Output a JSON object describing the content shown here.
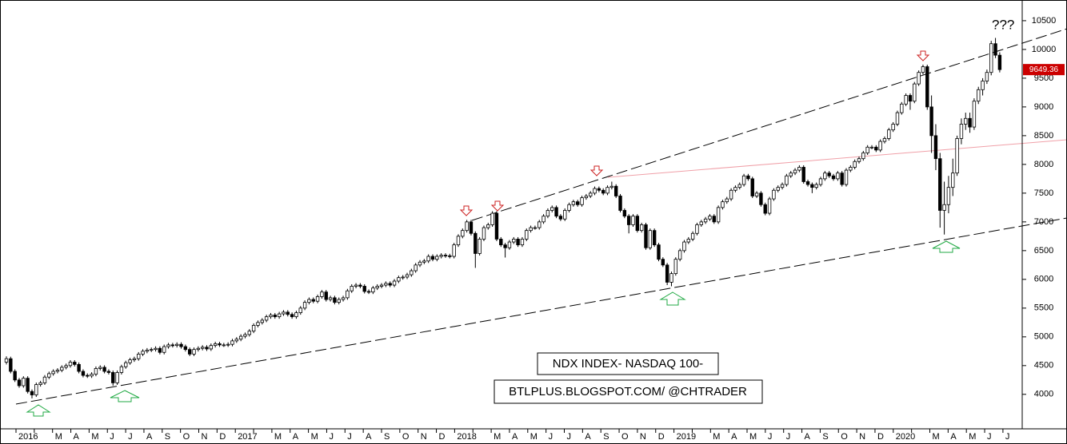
{
  "chart_data": {
    "type": "candlestick",
    "annotations": [
      "???",
      "NDX INDEX- NASDAQ 100-",
      "BTLPLUS.BLOGSPOT.COM/ @CHTRADER"
    ],
    "ylim": [
      3400,
      10860
    ],
    "yticks": [
      4000,
      4500,
      5000,
      5500,
      6000,
      6500,
      7000,
      7500,
      8000,
      8500,
      9000,
      9500,
      10000,
      10500
    ],
    "up_color": "#ffffff",
    "down_color": "#000000",
    "last_price_color": "#cc0000",
    "month_labels": [
      "2016",
      null,
      "M",
      "A",
      "M",
      "J",
      "J",
      "A",
      "S",
      "O",
      "N",
      "D",
      "2017",
      null,
      "M",
      "A",
      "M",
      "J",
      "J",
      "A",
      "S",
      "O",
      "N",
      "D",
      "2018",
      null,
      "M",
      "A",
      "M",
      "J",
      "J",
      "A",
      "S",
      "O",
      "N",
      "D",
      "2019",
      null,
      "M",
      "A",
      "M",
      "J",
      "J",
      "A",
      "S",
      "O",
      "N",
      "D",
      "2020",
      null,
      "M",
      "A",
      "M",
      "J",
      "J"
    ],
    "candles": [
      [
        4560,
        4660,
        4520,
        4620
      ],
      [
        4620,
        4655,
        4365,
        4400
      ],
      [
        4400,
        4435,
        4215,
        4250
      ],
      [
        4250,
        4285,
        4115,
        4150
      ],
      [
        4150,
        4315,
        4115,
        4280
      ],
      [
        4280,
        4315,
        4015,
        4050
      ],
      [
        4050,
        4085,
        3930,
        3990
      ],
      [
        3990,
        4205,
        3955,
        4170
      ],
      [
        4170,
        4235,
        4135,
        4200
      ],
      [
        4200,
        4335,
        4165,
        4300
      ],
      [
        4300,
        4395,
        4265,
        4360
      ],
      [
        4360,
        4435,
        4325,
        4400
      ],
      [
        4400,
        4455,
        4365,
        4420
      ],
      [
        4420,
        4505,
        4385,
        4470
      ],
      [
        4470,
        4535,
        4435,
        4500
      ],
      [
        4500,
        4595,
        4465,
        4560
      ],
      [
        4560,
        4595,
        4485,
        4520
      ],
      [
        4520,
        4555,
        4365,
        4400
      ],
      [
        4400,
        4435,
        4295,
        4330
      ],
      [
        4330,
        4365,
        4285,
        4320
      ],
      [
        4320,
        4385,
        4285,
        4350
      ],
      [
        4350,
        4485,
        4315,
        4450
      ],
      [
        4450,
        4505,
        4415,
        4470
      ],
      [
        4470,
        4505,
        4365,
        4400
      ],
      [
        4400,
        4435,
        4345,
        4380
      ],
      [
        4380,
        4415,
        4150,
        4200
      ],
      [
        4200,
        4415,
        4165,
        4380
      ],
      [
        4380,
        4515,
        4345,
        4480
      ],
      [
        4480,
        4585,
        4445,
        4550
      ],
      [
        4550,
        4635,
        4515,
        4600
      ],
      [
        4600,
        4655,
        4565,
        4620
      ],
      [
        4620,
        4735,
        4585,
        4700
      ],
      [
        4700,
        4785,
        4665,
        4750
      ],
      [
        4750,
        4805,
        4715,
        4770
      ],
      [
        4770,
        4815,
        4735,
        4780
      ],
      [
        4780,
        4835,
        4745,
        4800
      ],
      [
        4800,
        4835,
        4695,
        4730
      ],
      [
        4730,
        4865,
        4695,
        4830
      ],
      [
        4830,
        4895,
        4795,
        4860
      ],
      [
        4860,
        4895,
        4815,
        4850
      ],
      [
        4850,
        4905,
        4815,
        4870
      ],
      [
        4870,
        4905,
        4795,
        4830
      ],
      [
        4830,
        4865,
        4745,
        4780
      ],
      [
        4780,
        4815,
        4665,
        4700
      ],
      [
        4700,
        4815,
        4665,
        4780
      ],
      [
        4780,
        4835,
        4745,
        4800
      ],
      [
        4800,
        4855,
        4765,
        4820
      ],
      [
        4820,
        4855,
        4755,
        4790
      ],
      [
        4790,
        4885,
        4755,
        4850
      ],
      [
        4850,
        4915,
        4815,
        4880
      ],
      [
        4880,
        4915,
        4825,
        4860
      ],
      [
        4860,
        4895,
        4825,
        4860
      ],
      [
        4860,
        4905,
        4825,
        4870
      ],
      [
        4870,
        4965,
        4835,
        4930
      ],
      [
        4930,
        4995,
        4895,
        4960
      ],
      [
        4960,
        5045,
        4925,
        5010
      ],
      [
        5010,
        5075,
        4975,
        5040
      ],
      [
        5040,
        5135,
        5005,
        5100
      ],
      [
        5100,
        5235,
        5065,
        5200
      ],
      [
        5200,
        5285,
        5165,
        5250
      ],
      [
        5250,
        5325,
        5215,
        5290
      ],
      [
        5290,
        5385,
        5255,
        5350
      ],
      [
        5350,
        5415,
        5315,
        5380
      ],
      [
        5380,
        5415,
        5315,
        5350
      ],
      [
        5350,
        5435,
        5315,
        5400
      ],
      [
        5400,
        5465,
        5365,
        5430
      ],
      [
        5430,
        5465,
        5355,
        5390
      ],
      [
        5390,
        5425,
        5315,
        5350
      ],
      [
        5350,
        5455,
        5315,
        5420
      ],
      [
        5420,
        5535,
        5385,
        5500
      ],
      [
        5500,
        5635,
        5465,
        5600
      ],
      [
        5600,
        5685,
        5565,
        5650
      ],
      [
        5650,
        5685,
        5585,
        5620
      ],
      [
        5620,
        5735,
        5585,
        5700
      ],
      [
        5700,
        5815,
        5665,
        5780
      ],
      [
        5780,
        5815,
        5615,
        5650
      ],
      [
        5650,
        5715,
        5615,
        5680
      ],
      [
        5680,
        5715,
        5565,
        5600
      ],
      [
        5600,
        5685,
        5565,
        5650
      ],
      [
        5650,
        5715,
        5615,
        5680
      ],
      [
        5680,
        5835,
        5645,
        5800
      ],
      [
        5800,
        5915,
        5765,
        5880
      ],
      [
        5880,
        5935,
        5845,
        5900
      ],
      [
        5900,
        5935,
        5845,
        5880
      ],
      [
        5880,
        5915,
        5755,
        5790
      ],
      [
        5790,
        5825,
        5745,
        5780
      ],
      [
        5780,
        5885,
        5745,
        5850
      ],
      [
        5850,
        5915,
        5815,
        5880
      ],
      [
        5880,
        5935,
        5845,
        5900
      ],
      [
        5900,
        5965,
        5865,
        5930
      ],
      [
        5930,
        5965,
        5865,
        5900
      ],
      [
        5900,
        6005,
        5865,
        5970
      ],
      [
        5970,
        6065,
        5935,
        6030
      ],
      [
        6030,
        6075,
        5995,
        6040
      ],
      [
        6040,
        6115,
        6005,
        6080
      ],
      [
        6080,
        6185,
        6045,
        6150
      ],
      [
        6150,
        6285,
        6115,
        6250
      ],
      [
        6250,
        6335,
        6215,
        6300
      ],
      [
        6300,
        6355,
        6265,
        6320
      ],
      [
        6320,
        6435,
        6285,
        6400
      ],
      [
        6400,
        6435,
        6315,
        6350
      ],
      [
        6350,
        6435,
        6315,
        6400
      ],
      [
        6400,
        6455,
        6365,
        6420
      ],
      [
        6420,
        6455,
        6375,
        6410
      ],
      [
        6410,
        6445,
        6365,
        6400
      ],
      [
        6400,
        6635,
        6365,
        6600
      ],
      [
        6600,
        6785,
        6565,
        6750
      ],
      [
        6750,
        6885,
        6715,
        6850
      ],
      [
        6850,
        7035,
        6815,
        7000
      ],
      [
        7000,
        7035,
        6765,
        6800
      ],
      [
        6800,
        6835,
        6200,
        6450
      ],
      [
        6450,
        6735,
        6415,
        6700
      ],
      [
        6700,
        6935,
        6665,
        6900
      ],
      [
        6900,
        6985,
        6865,
        6950
      ],
      [
        6950,
        7185,
        6915,
        7150
      ],
      [
        7150,
        7185,
        6665,
        6700
      ],
      [
        6700,
        6735,
        6565,
        6600
      ],
      [
        6600,
        6635,
        6380,
        6550
      ],
      [
        6550,
        6685,
        6515,
        6650
      ],
      [
        6650,
        6735,
        6615,
        6700
      ],
      [
        6700,
        6735,
        6565,
        6600
      ],
      [
        6600,
        6735,
        6565,
        6700
      ],
      [
        6700,
        6885,
        6665,
        6850
      ],
      [
        6850,
        6935,
        6815,
        6900
      ],
      [
        6900,
        6935,
        6865,
        6900
      ],
      [
        6900,
        7035,
        6865,
        7000
      ],
      [
        7000,
        7135,
        6965,
        7100
      ],
      [
        7100,
        7235,
        7065,
        7200
      ],
      [
        7200,
        7285,
        7165,
        7250
      ],
      [
        7250,
        7285,
        7065,
        7100
      ],
      [
        7100,
        7135,
        7015,
        7050
      ],
      [
        7050,
        7235,
        7015,
        7200
      ],
      [
        7200,
        7335,
        7165,
        7300
      ],
      [
        7300,
        7385,
        7265,
        7350
      ],
      [
        7350,
        7385,
        7265,
        7300
      ],
      [
        7300,
        7455,
        7265,
        7420
      ],
      [
        7420,
        7485,
        7385,
        7450
      ],
      [
        7450,
        7535,
        7415,
        7500
      ],
      [
        7500,
        7615,
        7465,
        7580
      ],
      [
        7580,
        7615,
        7515,
        7550
      ],
      [
        7550,
        7585,
        7465,
        7500
      ],
      [
        7500,
        7635,
        7465,
        7600
      ],
      [
        7600,
        7700,
        7565,
        7620
      ],
      [
        7620,
        7655,
        7415,
        7450
      ],
      [
        7450,
        7485,
        7165,
        7200
      ],
      [
        7200,
        7235,
        7065,
        7100
      ],
      [
        7100,
        7135,
        6800,
        6950
      ],
      [
        6950,
        7135,
        6915,
        7100
      ],
      [
        7100,
        7135,
        6815,
        6850
      ],
      [
        6850,
        6985,
        6815,
        6950
      ],
      [
        6950,
        6985,
        6515,
        6550
      ],
      [
        6550,
        6885,
        6515,
        6850
      ],
      [
        6850,
        6885,
        6565,
        6600
      ],
      [
        6600,
        6635,
        6315,
        6350
      ],
      [
        6350,
        6385,
        6215,
        6250
      ],
      [
        6250,
        6285,
        5900,
        5950
      ],
      [
        5950,
        6135,
        5880,
        6100
      ],
      [
        6100,
        6385,
        6065,
        6350
      ],
      [
        6350,
        6535,
        6315,
        6500
      ],
      [
        6500,
        6685,
        6465,
        6650
      ],
      [
        6650,
        6735,
        6615,
        6700
      ],
      [
        6700,
        6835,
        6665,
        6800
      ],
      [
        6800,
        6985,
        6765,
        6950
      ],
      [
        6950,
        7035,
        6915,
        7000
      ],
      [
        7000,
        7085,
        6965,
        7050
      ],
      [
        7050,
        7135,
        7015,
        7100
      ],
      [
        7100,
        7135,
        6965,
        7000
      ],
      [
        7000,
        7285,
        6965,
        7250
      ],
      [
        7250,
        7385,
        7215,
        7350
      ],
      [
        7350,
        7435,
        7315,
        7400
      ],
      [
        7400,
        7585,
        7365,
        7550
      ],
      [
        7550,
        7635,
        7515,
        7600
      ],
      [
        7600,
        7685,
        7565,
        7650
      ],
      [
        7650,
        7835,
        7615,
        7800
      ],
      [
        7800,
        7835,
        7715,
        7750
      ],
      [
        7750,
        7785,
        7415,
        7450
      ],
      [
        7450,
        7535,
        7415,
        7500
      ],
      [
        7500,
        7535,
        7265,
        7300
      ],
      [
        7300,
        7335,
        7115,
        7150
      ],
      [
        7150,
        7435,
        7115,
        7400
      ],
      [
        7400,
        7585,
        7365,
        7550
      ],
      [
        7550,
        7635,
        7515,
        7600
      ],
      [
        7600,
        7685,
        7565,
        7650
      ],
      [
        7650,
        7835,
        7615,
        7800
      ],
      [
        7800,
        7885,
        7765,
        7850
      ],
      [
        7850,
        7935,
        7815,
        7900
      ],
      [
        7900,
        7985,
        7865,
        7950
      ],
      [
        7950,
        7985,
        7665,
        7700
      ],
      [
        7700,
        7735,
        7615,
        7650
      ],
      [
        7650,
        7685,
        7500,
        7600
      ],
      [
        7600,
        7685,
        7565,
        7650
      ],
      [
        7650,
        7785,
        7615,
        7750
      ],
      [
        7750,
        7885,
        7715,
        7850
      ],
      [
        7850,
        7885,
        7765,
        7800
      ],
      [
        7800,
        7835,
        7715,
        7750
      ],
      [
        7750,
        7885,
        7715,
        7850
      ],
      [
        7850,
        7885,
        7615,
        7650
      ],
      [
        7650,
        7935,
        7615,
        7900
      ],
      [
        7900,
        7985,
        7865,
        7950
      ],
      [
        7950,
        8085,
        7915,
        8050
      ],
      [
        8050,
        8135,
        8015,
        8100
      ],
      [
        8100,
        8235,
        8065,
        8200
      ],
      [
        8200,
        8335,
        8165,
        8300
      ],
      [
        8300,
        8335,
        8265,
        8300
      ],
      [
        8300,
        8335,
        8215,
        8250
      ],
      [
        8250,
        8435,
        8215,
        8400
      ],
      [
        8400,
        8485,
        8365,
        8450
      ],
      [
        8450,
        8635,
        8415,
        8600
      ],
      [
        8600,
        8735,
        8565,
        8700
      ],
      [
        8700,
        8935,
        8665,
        8900
      ],
      [
        8900,
        9085,
        8865,
        9050
      ],
      [
        9050,
        9235,
        9015,
        9200
      ],
      [
        9200,
        9235,
        8950,
        9100
      ],
      [
        9100,
        9435,
        9065,
        9400
      ],
      [
        9400,
        9635,
        9365,
        9600
      ],
      [
        9600,
        9735,
        9565,
        9700
      ],
      [
        9700,
        9735,
        8950,
        9000
      ],
      [
        9000,
        9200,
        8200,
        8500
      ],
      [
        8500,
        8700,
        7900,
        8100
      ],
      [
        8100,
        8200,
        6900,
        7200
      ],
      [
        7200,
        7700,
        6780,
        7300
      ],
      [
        7300,
        7800,
        7150,
        7600
      ],
      [
        7600,
        8100,
        7450,
        7850
      ],
      [
        7850,
        8500,
        7800,
        8450
      ],
      [
        8450,
        8800,
        8350,
        8700
      ],
      [
        8700,
        8900,
        8600,
        8800
      ],
      [
        8800,
        8900,
        8550,
        8650
      ],
      [
        8650,
        9150,
        8600,
        9100
      ],
      [
        9100,
        9350,
        9050,
        9300
      ],
      [
        9300,
        9500,
        9200,
        9450
      ],
      [
        9450,
        9650,
        9400,
        9600
      ],
      [
        9600,
        10150,
        9550,
        10100
      ],
      [
        10100,
        10200,
        9850,
        9900
      ],
      [
        9900,
        9950,
        9600,
        9649.36
      ]
    ]
  }
}
